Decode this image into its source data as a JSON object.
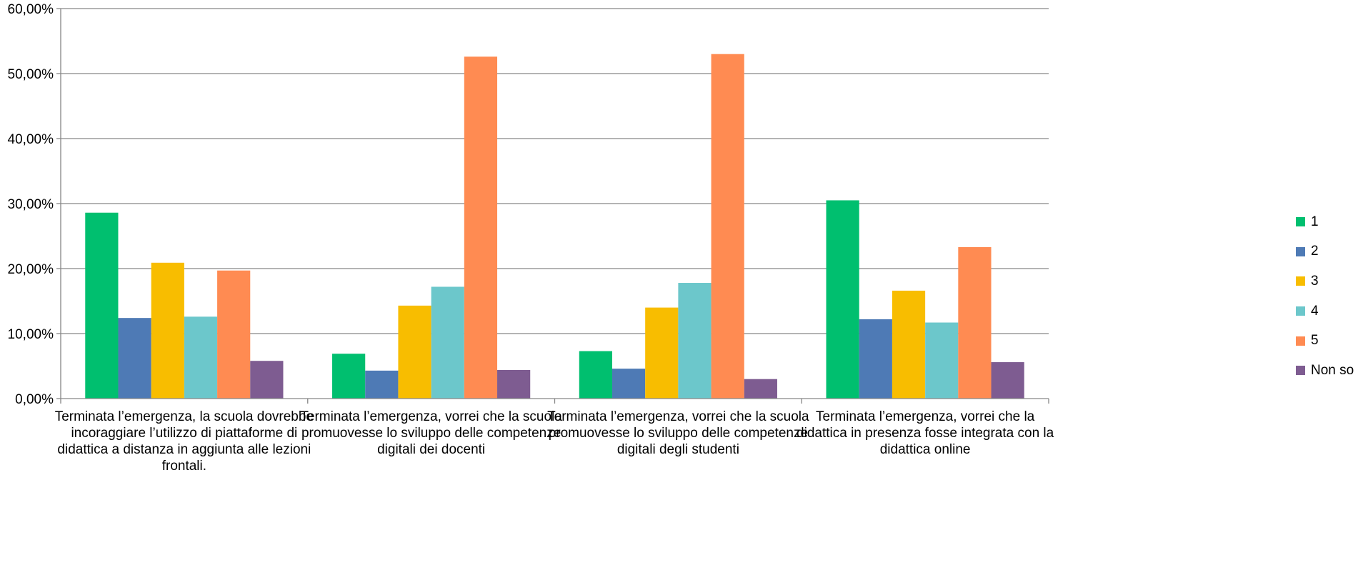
{
  "chart_data": {
    "type": "bar",
    "categories": [
      "Terminata l’emergenza, la scuola dovrebbe incoraggiare l’utilizzo di piattaforme di didattica a distanza in aggiunta alle lezioni frontali.",
      "Terminata l’emergenza, vorrei che la scuola promuovesse lo sviluppo delle competenze digitali dei docenti",
      "Terminata l’emergenza, vorrei che la scuola promuovesse lo sviluppo delle competenze digitali degli studenti",
      "Terminata l’emergenza, vorrei che la didattica in presenza fosse integrata con la didattica online"
    ],
    "category_lines": [
      [
        "Terminata l’emergenza, la scuola dovrebbe",
        "incoraggiare l’utilizzo di piattaforme di",
        "didattica a distanza in aggiunta alle lezioni",
        "frontali."
      ],
      [
        "Terminata l’emergenza, vorrei che la scuola",
        "promuovesse lo sviluppo delle competenze",
        "digitali dei docenti"
      ],
      [
        "Terminata l’emergenza, vorrei che la scuola",
        "promuovesse lo sviluppo delle competenze",
        "digitali degli studenti"
      ],
      [
        "Terminata l’emergenza, vorrei che la",
        "didattica in presenza fosse integrata con la",
        "didattica online"
      ]
    ],
    "series": [
      {
        "name": "1",
        "color": "#00BF6F",
        "values": [
          28.6,
          6.9,
          7.3,
          30.5
        ]
      },
      {
        "name": "2",
        "color": "#4E7AB5",
        "values": [
          12.4,
          4.3,
          4.6,
          12.2
        ]
      },
      {
        "name": "3",
        "color": "#F8BD00",
        "values": [
          20.9,
          14.3,
          14.0,
          16.6
        ]
      },
      {
        "name": "4",
        "color": "#6CC7CB",
        "values": [
          12.6,
          17.2,
          17.8,
          11.7
        ]
      },
      {
        "name": "5",
        "color": "#FF8B52",
        "values": [
          19.7,
          52.6,
          53.0,
          23.3
        ]
      },
      {
        "name": "Non so",
        "color": "#7E5C91",
        "values": [
          5.8,
          4.4,
          3.0,
          5.6
        ]
      }
    ],
    "y_ticks": [
      "0,00%",
      "10,00%",
      "20,00%",
      "30,00%",
      "40,00%",
      "50,00%",
      "60,00%"
    ],
    "ylim": [
      0,
      60
    ],
    "y_step": 10,
    "grid": true,
    "grid_color": "#868686",
    "axis_color": "#868686",
    "legend_position": "right",
    "title": "",
    "xlabel": "",
    "ylabel": ""
  }
}
